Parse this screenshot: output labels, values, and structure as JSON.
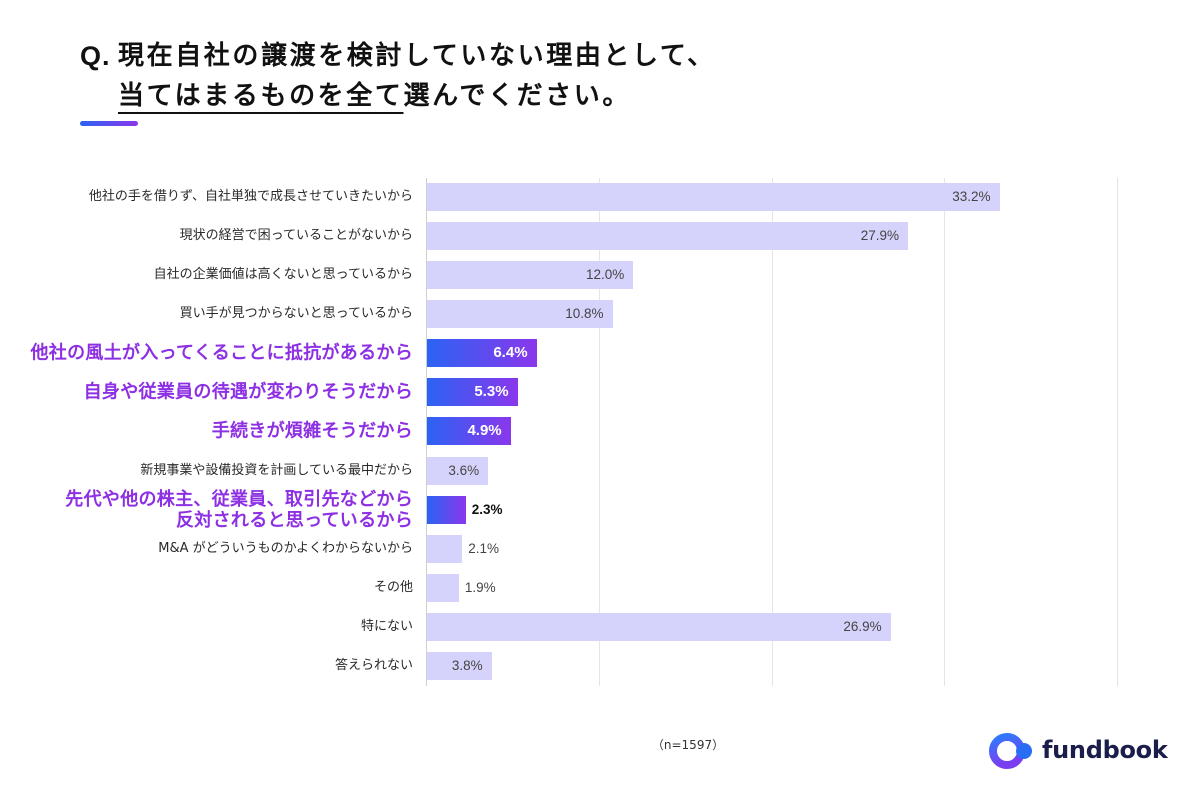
{
  "title": {
    "prefix": "Q.",
    "line1": "現在自社の譲渡を検討していない理由として、",
    "line2_underlined": "当てはまるものを全て",
    "line2_rest": "選んでください。"
  },
  "accent": {
    "from": "#2b63f3",
    "to": "#8a37ec"
  },
  "chart_data": {
    "type": "bar",
    "orientation": "horizontal",
    "categories": [
      "他社の手を借りず、自社単独で成長させていきたいから",
      "現状の経営で困っていることがないから",
      "自社の企業価値は高くないと思っているから",
      "買い手が見つからないと思っているから",
      "他社の風土が入ってくることに抵抗があるから",
      "自身や従業員の待遇が変わりそうだから",
      "手続きが煩雑そうだから",
      "新規事業や設備投資を計画している最中だから",
      "先代や他の株主、従業員、取引先などから\n反対されると思っているから",
      "M&A がどういうものかよくわからないから",
      "その他",
      "特にない",
      "答えられない"
    ],
    "values": [
      33.2,
      27.9,
      12.0,
      10.8,
      6.4,
      5.3,
      4.9,
      3.6,
      2.3,
      2.1,
      1.9,
      26.9,
      3.8
    ],
    "data_labels": [
      "33.2%",
      "27.9%",
      "12.0%",
      "10.8%",
      "6.4%",
      "5.3%",
      "4.9%",
      "3.6%",
      "2.3%",
      "2.1%",
      "1.9%",
      "26.9%",
      "3.8%"
    ],
    "highlighted": [
      4,
      5,
      6,
      8
    ],
    "xlim": [
      0,
      40
    ],
    "grid": true,
    "colors": {
      "bar": "#d5d3fb",
      "highlight_from": "#2b63f3",
      "highlight_to": "#8a37ec",
      "highlight_label": "#8d2fe3"
    }
  },
  "sample_note": "（n=1597）",
  "logo": {
    "text": "fundbook",
    "text_color": "#1b1e4b",
    "ring_from": "#2f7bff",
    "ring_to": "#7a3df0",
    "dot_color": "#2a6df5"
  }
}
